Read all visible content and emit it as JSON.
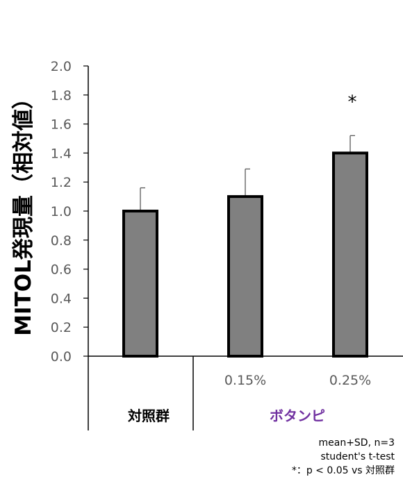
{
  "chart_data": {
    "type": "bar",
    "ylabel": "MITOL発現量（相対値）",
    "ylim": [
      0,
      2.0
    ],
    "yticks": [
      "0.0",
      "0.2",
      "0.4",
      "0.6",
      "0.8",
      "1.0",
      "1.2",
      "1.4",
      "1.6",
      "1.8",
      "2.0"
    ],
    "categories": [
      "",
      "0.15%",
      "0.25%"
    ],
    "values": [
      1.0,
      1.1,
      1.4
    ],
    "errors": [
      0.16,
      0.19,
      0.12
    ],
    "significance": [
      "",
      "",
      "*"
    ],
    "groups": [
      {
        "label": "対照群",
        "color": "#000000"
      },
      {
        "label": "ボタンピ",
        "color": "#7030a0"
      }
    ],
    "bar_color": "#808080",
    "bar_edge": "#000000",
    "grid": false
  },
  "notes": [
    "mean+SD, n=3",
    "student's t-test",
    "*：p < 0.05 vs 対照群"
  ]
}
